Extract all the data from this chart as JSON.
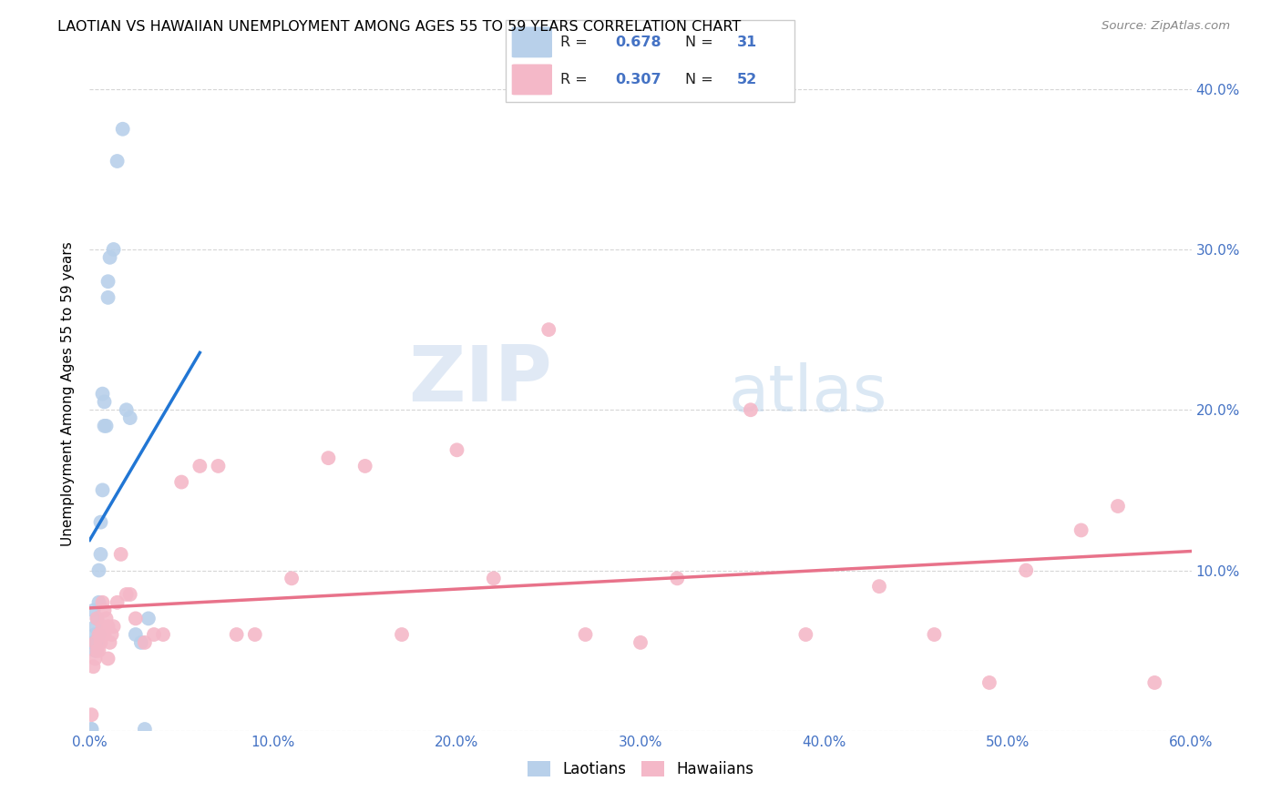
{
  "title": "LAOTIAN VS HAWAIIAN UNEMPLOYMENT AMONG AGES 55 TO 59 YEARS CORRELATION CHART",
  "source": "Source: ZipAtlas.com",
  "ylabel": "Unemployment Among Ages 55 to 59 years",
  "xlim": [
    0.0,
    0.6
  ],
  "ylim": [
    0.0,
    0.42
  ],
  "xticks": [
    0.0,
    0.1,
    0.2,
    0.3,
    0.4,
    0.5,
    0.6
  ],
  "xticklabels": [
    "0.0%",
    "10.0%",
    "20.0%",
    "30.0%",
    "40.0%",
    "50.0%",
    "60.0%"
  ],
  "yticks": [
    0.0,
    0.1,
    0.2,
    0.3,
    0.4
  ],
  "yticklabels_right": [
    "",
    "10.0%",
    "20.0%",
    "30.0%",
    "40.0%"
  ],
  "laotian_R": "0.678",
  "laotian_N": "31",
  "hawaiian_R": "0.307",
  "hawaiian_N": "52",
  "laotian_color": "#b8d0ea",
  "hawaiian_color": "#f4b8c8",
  "laotian_line_color": "#2176d4",
  "hawaiian_line_color": "#e8728a",
  "watermark_zip": "ZIP",
  "watermark_atlas": "atlas",
  "laotian_x": [
    0.001,
    0.002,
    0.002,
    0.003,
    0.003,
    0.003,
    0.004,
    0.004,
    0.005,
    0.005,
    0.005,
    0.006,
    0.006,
    0.007,
    0.007,
    0.008,
    0.008,
    0.009,
    0.01,
    0.01,
    0.011,
    0.013,
    0.015,
    0.018,
    0.02,
    0.022,
    0.025,
    0.028,
    0.03,
    0.032,
    0.001
  ],
  "laotian_y": [
    0.001,
    0.055,
    0.075,
    0.05,
    0.06,
    0.065,
    0.055,
    0.07,
    0.06,
    0.08,
    0.1,
    0.11,
    0.13,
    0.15,
    0.21,
    0.19,
    0.205,
    0.19,
    0.27,
    0.28,
    0.295,
    0.3,
    0.355,
    0.375,
    0.2,
    0.195,
    0.06,
    0.055,
    0.001,
    0.07,
    0.001
  ],
  "hawaiian_x": [
    0.001,
    0.002,
    0.003,
    0.003,
    0.004,
    0.004,
    0.005,
    0.005,
    0.006,
    0.006,
    0.007,
    0.007,
    0.008,
    0.008,
    0.009,
    0.01,
    0.01,
    0.011,
    0.012,
    0.013,
    0.015,
    0.017,
    0.02,
    0.022,
    0.025,
    0.03,
    0.035,
    0.04,
    0.05,
    0.06,
    0.07,
    0.08,
    0.09,
    0.11,
    0.13,
    0.15,
    0.17,
    0.2,
    0.22,
    0.25,
    0.27,
    0.3,
    0.32,
    0.36,
    0.39,
    0.43,
    0.46,
    0.49,
    0.51,
    0.54,
    0.56,
    0.58
  ],
  "hawaiian_y": [
    0.01,
    0.04,
    0.045,
    0.055,
    0.05,
    0.07,
    0.05,
    0.06,
    0.055,
    0.06,
    0.065,
    0.08,
    0.06,
    0.075,
    0.07,
    0.045,
    0.065,
    0.055,
    0.06,
    0.065,
    0.08,
    0.11,
    0.085,
    0.085,
    0.07,
    0.055,
    0.06,
    0.06,
    0.155,
    0.165,
    0.165,
    0.06,
    0.06,
    0.095,
    0.17,
    0.165,
    0.06,
    0.175,
    0.095,
    0.25,
    0.06,
    0.055,
    0.095,
    0.2,
    0.06,
    0.09,
    0.06,
    0.03,
    0.1,
    0.125,
    0.14,
    0.03
  ]
}
